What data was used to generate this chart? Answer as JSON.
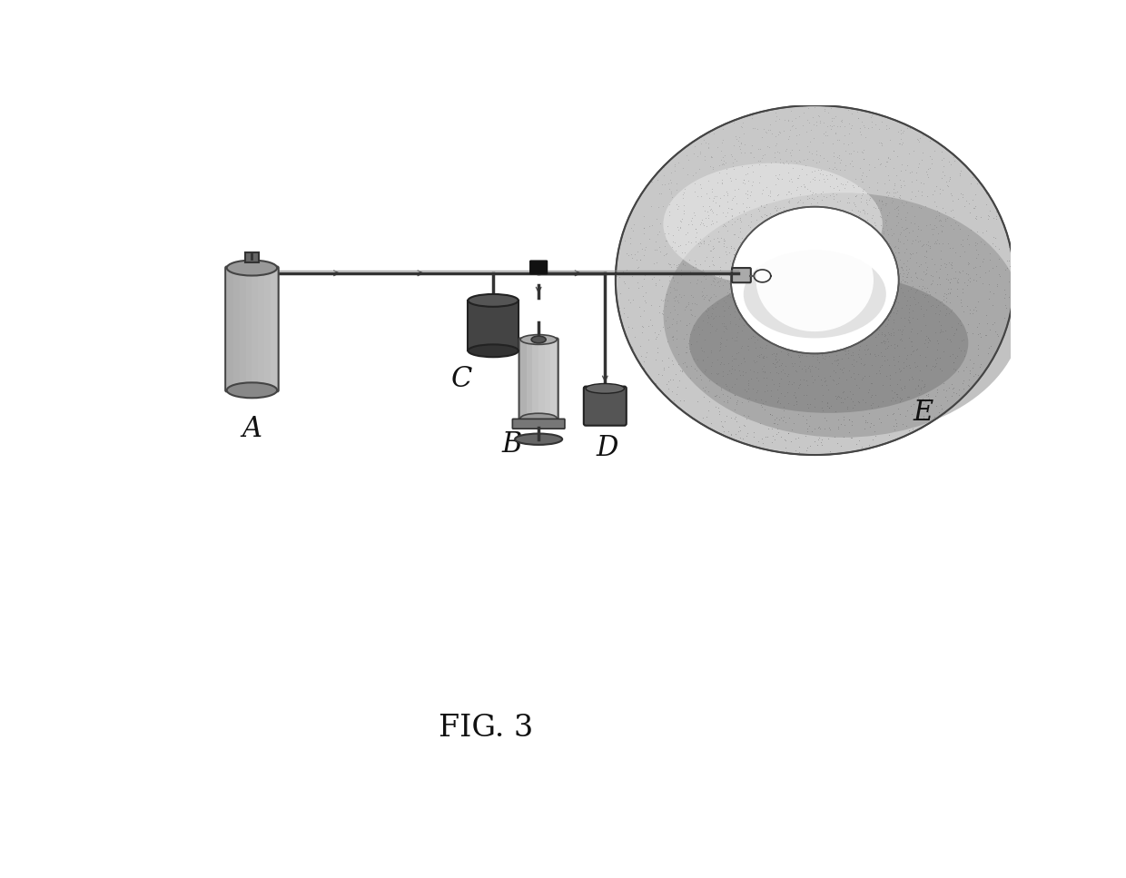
{
  "title": "FIG. 3",
  "background_color": "#ffffff",
  "label_A": "A",
  "label_B": "B",
  "label_C": "C",
  "label_D": "D",
  "label_E": "E",
  "label_fontsize": 22,
  "title_fontsize": 24,
  "fig_w": 12.4,
  "fig_h": 9.67,
  "dpi": 100
}
